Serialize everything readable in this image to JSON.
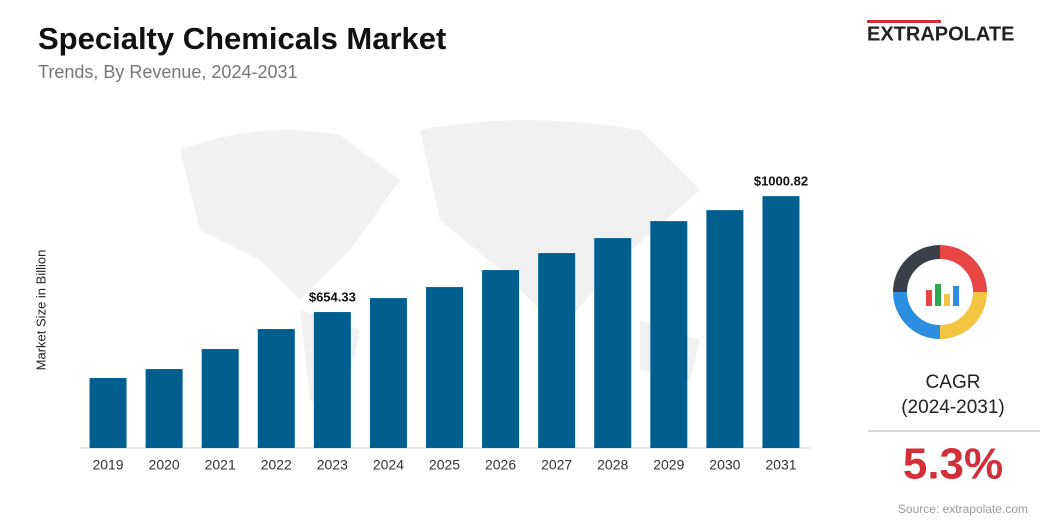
{
  "chart_data": {
    "type": "bar",
    "title": "Specialty Chemicals Market",
    "subtitle": "Trends, By Revenue, 2024-2031",
    "y_label": "Market Size in Billion",
    "categories": [
      "2019",
      "2020",
      "2021",
      "2022",
      "2023",
      "2024",
      "2025",
      "2026",
      "2027",
      "2028",
      "2029",
      "2030",
      "2031"
    ],
    "values": [
      457.2,
      484.0,
      543.8,
      603.5,
      654.33,
      696.1,
      729.0,
      779.8,
      830.6,
      875.4,
      926.1,
      959.0,
      1000.82
    ],
    "value_labels": [
      null,
      null,
      null,
      null,
      "$654.33",
      null,
      null,
      null,
      null,
      null,
      null,
      null,
      "$1000.82"
    ],
    "color": "#005f8f",
    "ylim": [
      248,
      1049
    ]
  },
  "brand": "EXTRAPOLATE",
  "sidebar": {
    "label": "CAGR",
    "period": "(2024-2031)",
    "value": "5.3%",
    "source": "Source: extrapolate.com"
  }
}
